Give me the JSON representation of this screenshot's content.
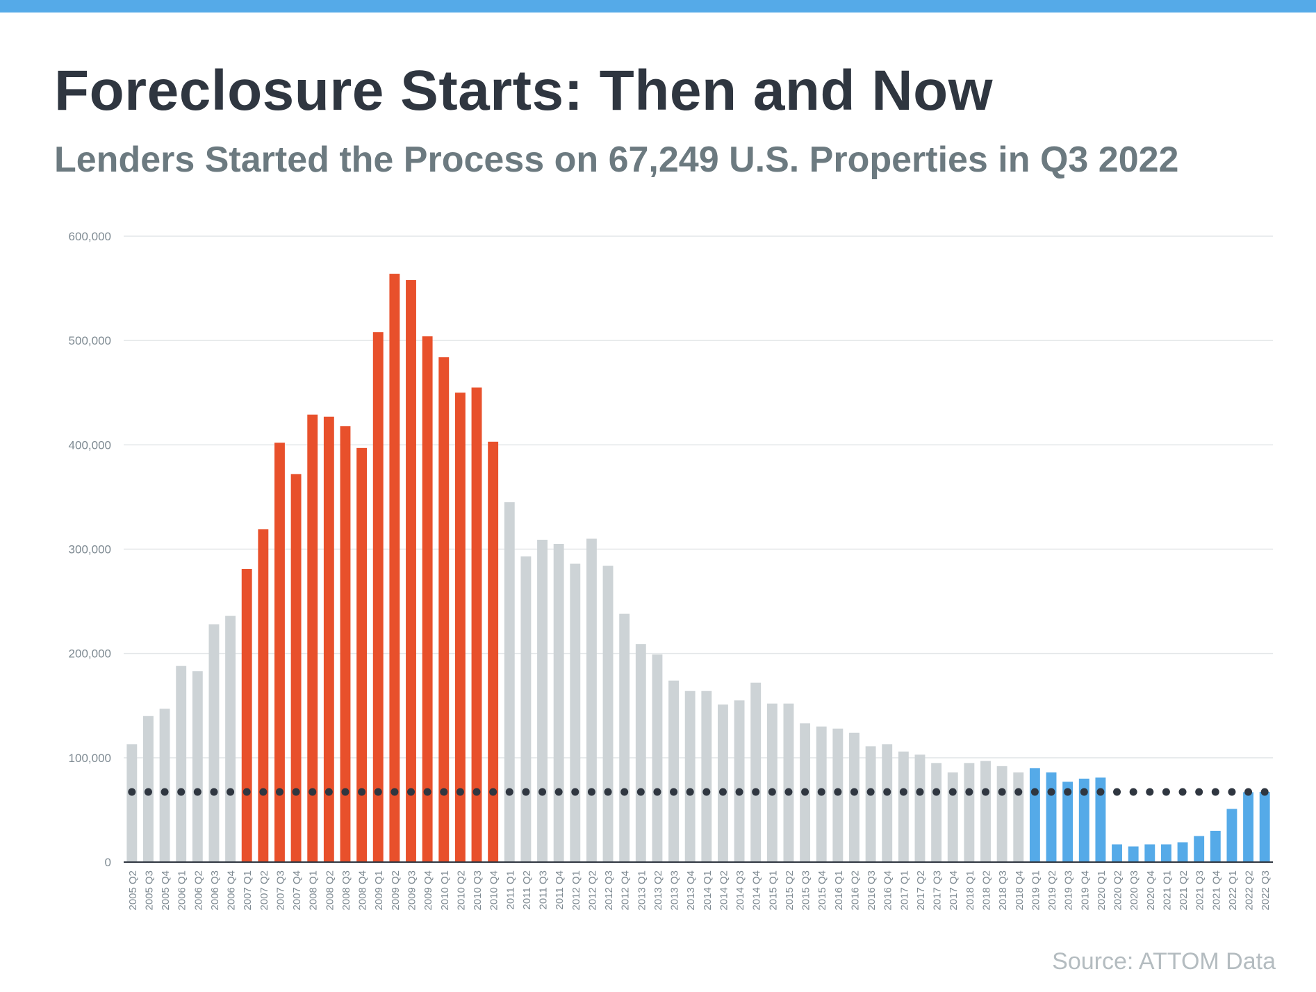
{
  "header": {
    "title": "Foreclosure Starts: Then and Now",
    "subtitle": "Lenders Started the Process on 67,249 U.S. Properties in Q3 2022"
  },
  "source": "Source: ATTOM Data",
  "colors": {
    "top_bar": "#55aae8",
    "bar_default": "#cdd3d6",
    "bar_crisis": "#e8502b",
    "bar_recent": "#55aae8",
    "reference_line": "#2f3640",
    "gridline": "#e3e6e8"
  },
  "chart_data": {
    "type": "bar",
    "ylim": [
      0,
      600000
    ],
    "yticks": [
      "0",
      "100,000",
      "200,000",
      "300,000",
      "400,000",
      "500,000",
      "600,000"
    ],
    "ytick_values": [
      0,
      100000,
      200000,
      300000,
      400000,
      500000,
      600000
    ],
    "grid": true,
    "reference_line": {
      "value": 67249,
      "style": "dotted"
    },
    "highlight_ranges": {
      "crisis": [
        "2007 Q1",
        "2010 Q4"
      ],
      "recent": [
        "2019 Q1",
        "2022 Q3"
      ]
    },
    "categories": [
      "2005 Q2",
      "2005 Q3",
      "2005 Q4",
      "2006 Q1",
      "2006 Q2",
      "2006 Q3",
      "2006 Q4",
      "2007 Q1",
      "2007 Q2",
      "2007 Q3",
      "2007 Q4",
      "2008 Q1",
      "2008 Q2",
      "2008 Q3",
      "2008 Q4",
      "2009 Q1",
      "2009 Q2",
      "2009 Q3",
      "2009 Q4",
      "2010 Q1",
      "2010 Q2",
      "2010 Q3",
      "2010 Q4",
      "2011 Q1",
      "2011 Q2",
      "2011 Q3",
      "2011 Q4",
      "2012 Q1",
      "2012 Q2",
      "2012 Q3",
      "2012 Q4",
      "2013 Q1",
      "2013 Q2",
      "2013 Q3",
      "2013 Q4",
      "2014 Q1",
      "2014 Q2",
      "2014 Q3",
      "2014 Q4",
      "2015 Q1",
      "2015 Q2",
      "2015 Q3",
      "2015 Q4",
      "2016 Q1",
      "2016 Q2",
      "2016 Q3",
      "2016 Q4",
      "2017 Q1",
      "2017 Q2",
      "2017 Q3",
      "2017 Q4",
      "2018 Q1",
      "2018 Q2",
      "2018 Q3",
      "2018 Q4",
      "2019 Q1",
      "2019 Q2",
      "2019 Q3",
      "2019 Q4",
      "2020 Q1",
      "2020 Q2",
      "2020 Q3",
      "2020 Q4",
      "2021 Q1",
      "2021 Q2",
      "2021 Q3",
      "2021 Q4",
      "2022 Q1",
      "2022 Q2",
      "2022 Q3"
    ],
    "values": [
      113000,
      140000,
      147000,
      188000,
      183000,
      228000,
      236000,
      281000,
      319000,
      402000,
      372000,
      429000,
      427000,
      418000,
      397000,
      508000,
      564000,
      558000,
      504000,
      484000,
      450000,
      455000,
      403000,
      345000,
      293000,
      309000,
      305000,
      286000,
      310000,
      284000,
      238000,
      209000,
      199000,
      174000,
      164000,
      164000,
      151000,
      155000,
      172000,
      152000,
      152000,
      133000,
      130000,
      128000,
      124000,
      111000,
      113000,
      106000,
      103000,
      95000,
      86000,
      95000,
      97000,
      92000,
      86000,
      90000,
      86000,
      77000,
      80000,
      81000,
      17000,
      15000,
      17000,
      17000,
      19000,
      25000,
      30000,
      51000,
      67000,
      67249
    ]
  }
}
